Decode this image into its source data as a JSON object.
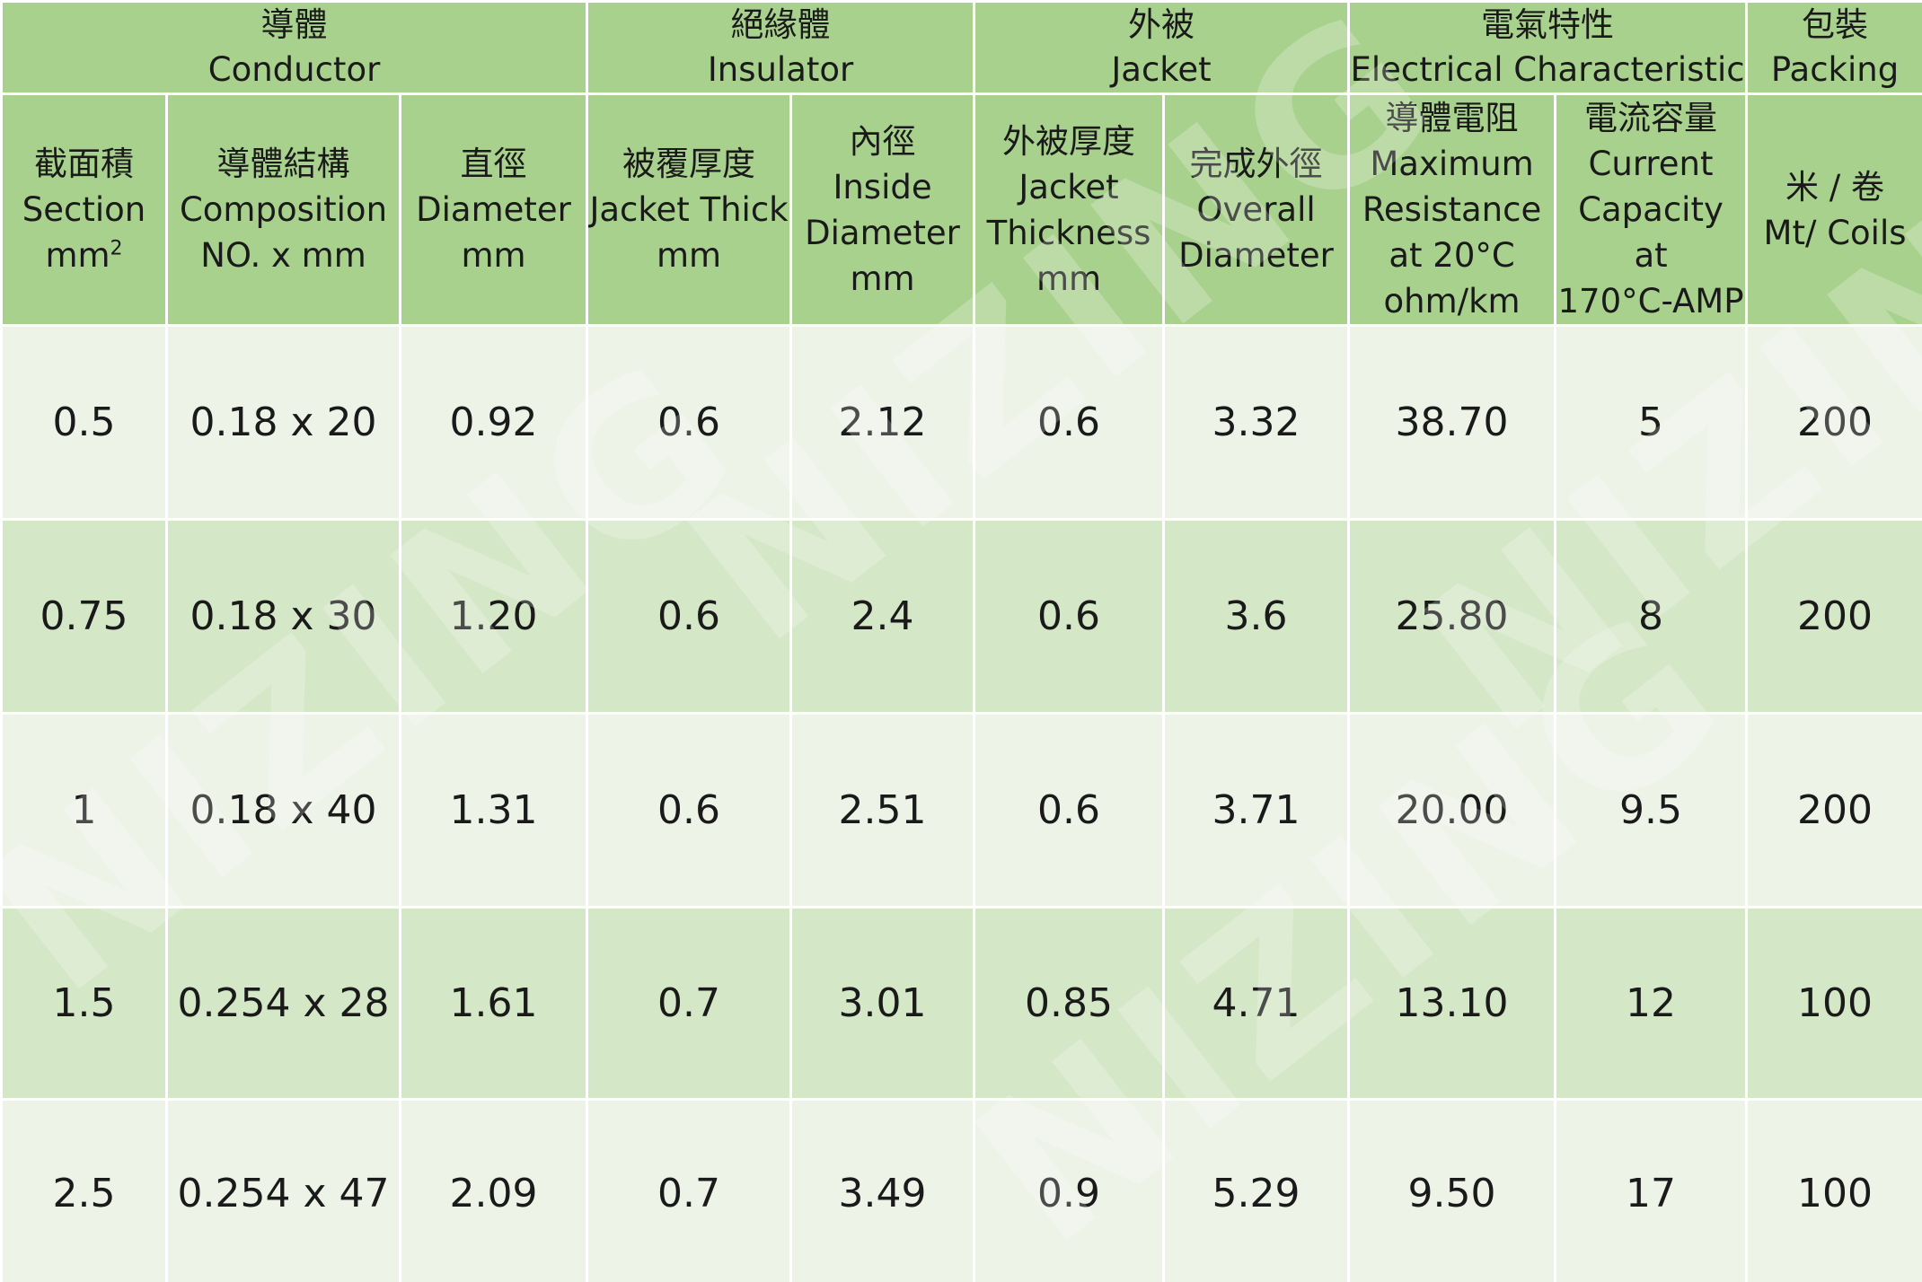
{
  "groups": [
    {
      "zh": "導體",
      "en": "Conductor"
    },
    {
      "zh": "絕緣體",
      "en": "Insulator"
    },
    {
      "zh": "外被",
      "en": "Jacket"
    },
    {
      "zh": "電氣特性",
      "en": "Electrical Characteristic"
    },
    {
      "zh": "包裝",
      "en": "Packing"
    }
  ],
  "columns": [
    {
      "lines": [
        "截面積",
        "Section",
        "mm"
      ],
      "sup": "2"
    },
    {
      "lines": [
        "導體結構",
        "Composition",
        "NO. x  mm"
      ]
    },
    {
      "lines": [
        "直徑",
        "Diameter",
        "mm"
      ]
    },
    {
      "lines": [
        "被覆厚度",
        "Jacket Thick",
        "mm"
      ]
    },
    {
      "lines": [
        "內徑",
        "Inside",
        "Diameter",
        "mm"
      ]
    },
    {
      "lines": [
        "外被厚度",
        "Jacket",
        "Thickness",
        "mm"
      ]
    },
    {
      "lines": [
        "完成外徑",
        "Overall",
        "Diameter"
      ]
    },
    {
      "lines": [
        "導體電阻",
        "Maximum",
        "Resistance",
        "at 20°C",
        "ohm/km"
      ]
    },
    {
      "lines": [
        "電流容量",
        "Current",
        "Capacity at",
        "170°C-AMP"
      ]
    },
    {
      "lines": [
        "米 / 卷",
        "Mt/ Coils"
      ]
    }
  ],
  "rows": [
    [
      "0.5",
      "0.18 x 20",
      "0.92",
      "0.6",
      "2.12",
      "0.6",
      "3.32",
      "38.70",
      "5",
      "200"
    ],
    [
      "0.75",
      "0.18 x 30",
      "1.20",
      "0.6",
      "2.4",
      "0.6",
      "3.6",
      "25.80",
      "8",
      "200"
    ],
    [
      "1",
      "0.18 x 40",
      "1.31",
      "0.6",
      "2.51",
      "0.6",
      "3.71",
      "20.00",
      "9.5",
      "200"
    ],
    [
      "1.5",
      "0.254 x 28",
      "1.61",
      "0.7",
      "3.01",
      "0.85",
      "4.71",
      "13.10",
      "12",
      "100"
    ],
    [
      "2.5",
      "0.254 x 47",
      "2.09",
      "0.7",
      "3.49",
      "0.9",
      "5.29",
      "9.50",
      "17",
      "100"
    ]
  ],
  "watermark": "NIZING"
}
